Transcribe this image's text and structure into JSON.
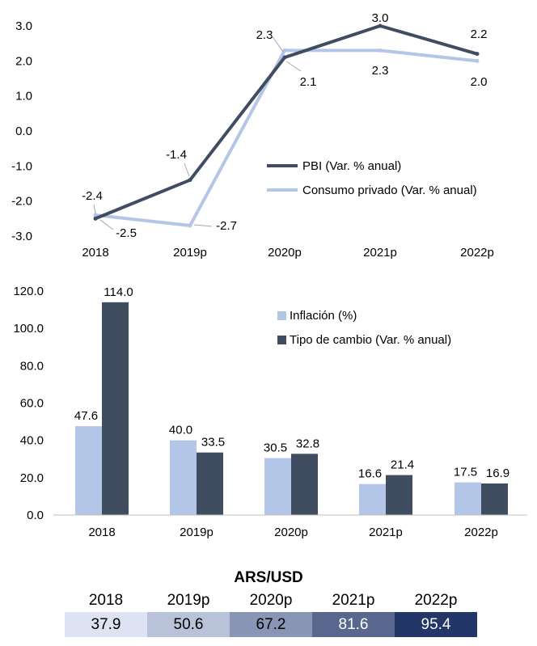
{
  "chart_data": [
    {
      "type": "line",
      "categories": [
        "2018",
        "2019p",
        "2020p",
        "2021p",
        "2022p"
      ],
      "series": [
        {
          "name": "PBI (Var. % anual)",
          "values": [
            -2.5,
            -1.4,
            2.1,
            3.0,
            2.2
          ],
          "color": "#404c60"
        },
        {
          "name": "Consumo privado (Var. % anual)",
          "values": [
            -2.4,
            -2.7,
            2.3,
            2.3,
            2.0
          ],
          "color": "#b4c6e7"
        }
      ],
      "yticks": [
        "3.0",
        "2.0",
        "1.0",
        "0.0",
        "-1.0",
        "-2.0",
        "-3.0"
      ],
      "ylim": [
        -3,
        3
      ],
      "legend": "center-right"
    },
    {
      "type": "bar",
      "categories": [
        "2018",
        "2019p",
        "2020p",
        "2021p",
        "2022p"
      ],
      "series": [
        {
          "name": "Inflación (%)",
          "values": [
            47.6,
            40.0,
            30.5,
            16.6,
            17.5
          ],
          "color": "#b4c6e7"
        },
        {
          "name": "Tipo de cambio  (Var. % anual)",
          "values": [
            114.0,
            33.5,
            32.8,
            21.4,
            16.9
          ],
          "color": "#404c60"
        }
      ],
      "yticks": [
        "120.0",
        "100.0",
        "80.0",
        "60.0",
        "40.0",
        "20.0",
        "0.0"
      ],
      "ylim": [
        0,
        120
      ],
      "legend": "top-right"
    },
    {
      "type": "table",
      "title": "ARS/USD",
      "years": [
        "2018",
        "2019p",
        "2020p",
        "2021p",
        "2022p"
      ],
      "values": [
        "37.9",
        "50.6",
        "67.2",
        "81.6",
        "95.4"
      ],
      "colors": [
        "#dde3f2",
        "#b8c2d8",
        "#8995b4",
        "#59678f",
        "#223768"
      ],
      "text_colors": [
        "#000000",
        "#000000",
        "#000000",
        "#ffffff",
        "#ffffff"
      ]
    }
  ]
}
